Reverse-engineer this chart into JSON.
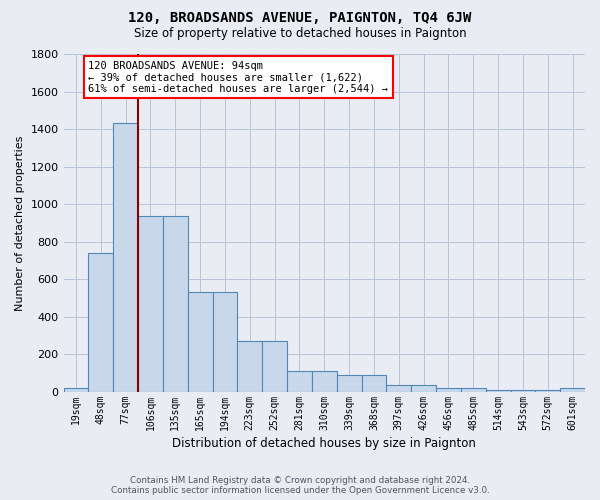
{
  "title": "120, BROADSANDS AVENUE, PAIGNTON, TQ4 6JW",
  "subtitle": "Size of property relative to detached houses in Paignton",
  "xlabel": "Distribution of detached houses by size in Paignton",
  "ylabel": "Number of detached properties",
  "footnote1": "Contains HM Land Registry data © Crown copyright and database right 2024.",
  "footnote2": "Contains public sector information licensed under the Open Government Licence v3.0.",
  "categories": [
    "19sqm",
    "48sqm",
    "77sqm",
    "106sqm",
    "135sqm",
    "165sqm",
    "194sqm",
    "223sqm",
    "252sqm",
    "281sqm",
    "310sqm",
    "339sqm",
    "368sqm",
    "397sqm",
    "426sqm",
    "456sqm",
    "485sqm",
    "514sqm",
    "543sqm",
    "572sqm",
    "601sqm"
  ],
  "values": [
    20,
    740,
    1430,
    940,
    940,
    530,
    530,
    270,
    270,
    110,
    110,
    90,
    90,
    40,
    40,
    20,
    20,
    10,
    10,
    10,
    20
  ],
  "bar_color": "#c8d8ea",
  "bar_edge_color": "#4f87b8",
  "grid_color": "#b8c4d8",
  "background_color": "#eaecf4",
  "annotation_line1": "120 BROADSANDS AVENUE: 94sqm",
  "annotation_line2": "← 39% of detached houses are smaller (1,622)",
  "annotation_line3": "61% of semi-detached houses are larger (2,544) →",
  "redline_x": 2.5,
  "ylim_max": 1800,
  "ytick_step": 200
}
